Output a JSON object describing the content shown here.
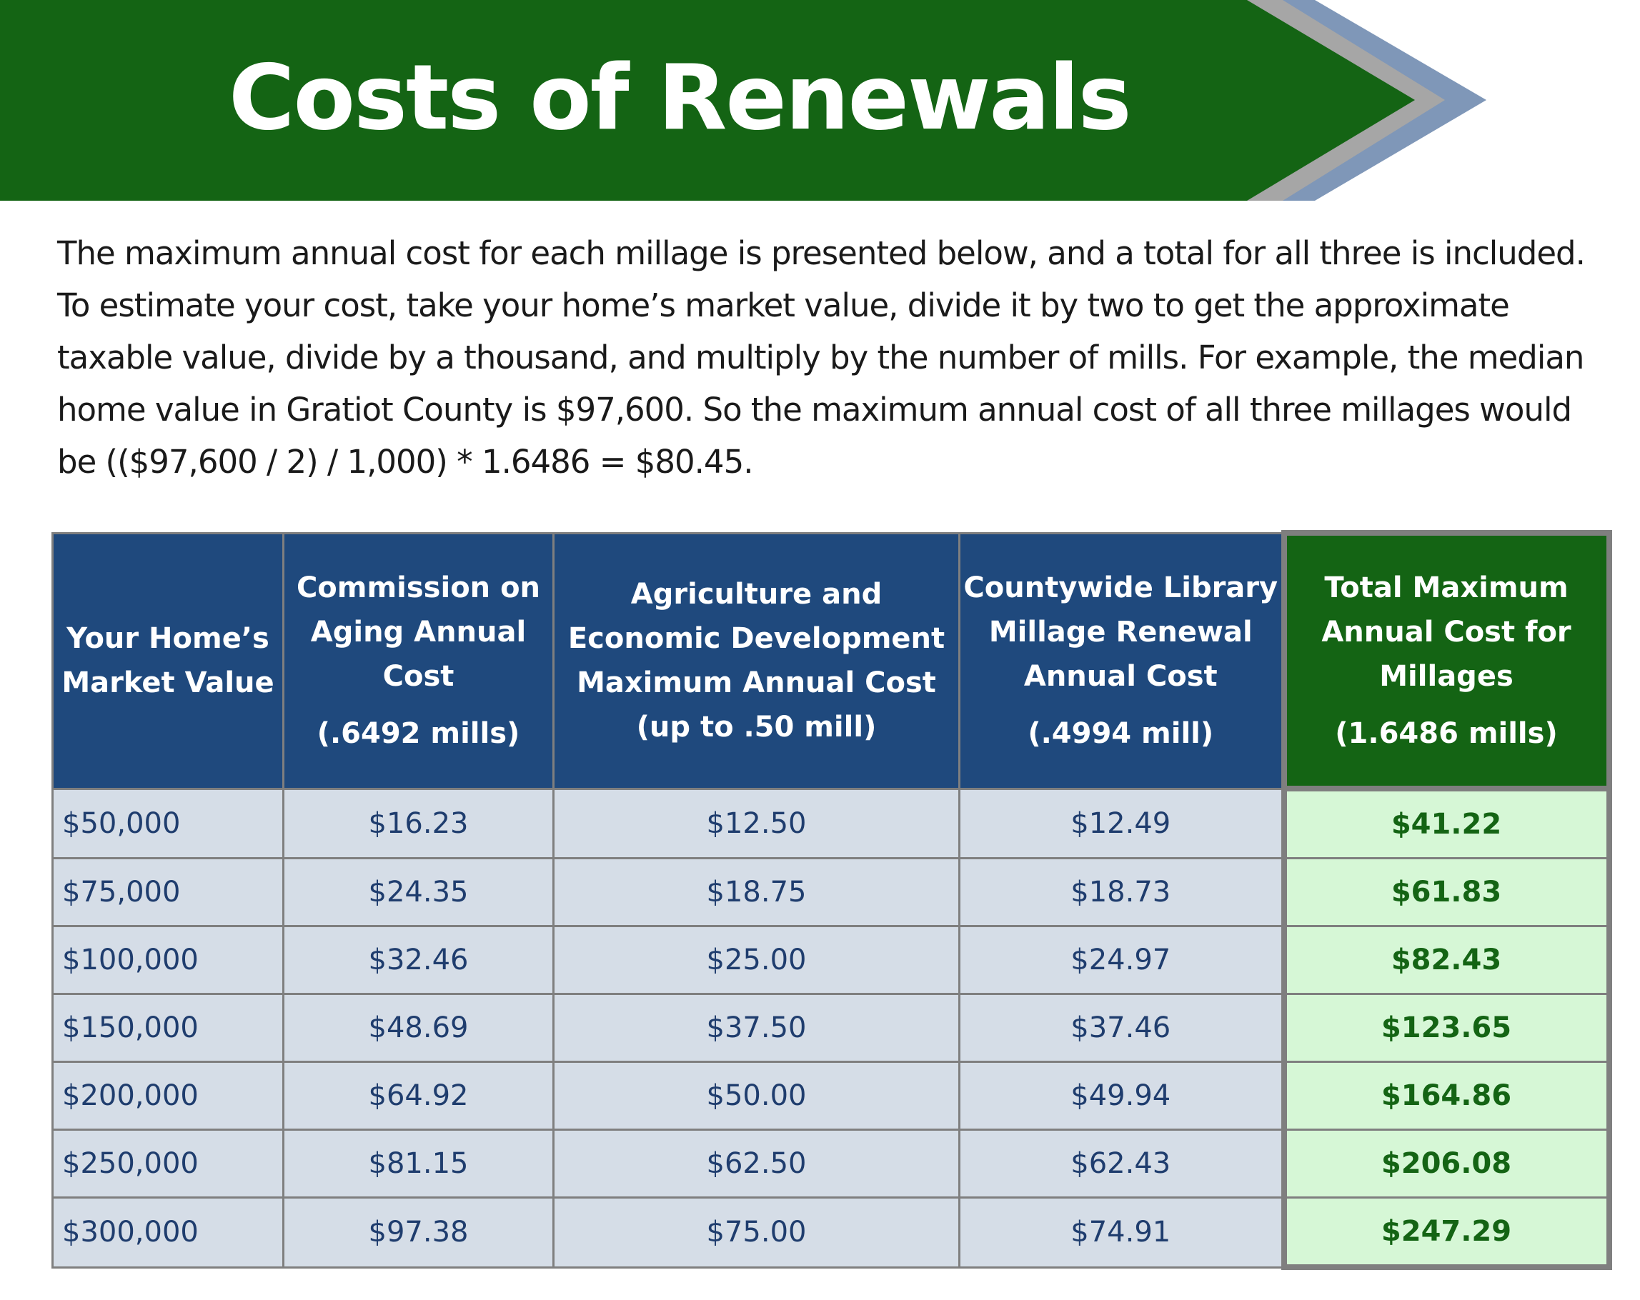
{
  "banner": {
    "title": "Costs of Renewals"
  },
  "intro": {
    "lines": [
      "The maximum annual cost for each millage is presented below, and a total for all three is included.",
      "To estimate your cost, take your home’s market value, divide it by two to get the approximate",
      "taxable value, divide by a thousand, and multiply by the number of mills.  For example, the median",
      "home value in Gratiot County is $97,600.  So the maximum annual cost of all three millages would",
      "be (($97,600 / 2) / 1,000) * 1.6486 =  $80.45."
    ]
  },
  "table": {
    "headers": [
      {
        "line1": "Your Home’s",
        "line2": "Market Value",
        "line3": "",
        "sub": ""
      },
      {
        "line1": "Commission on",
        "line2": "Aging Annual",
        "line3": "Cost",
        "sub": "(.6492 mills)"
      },
      {
        "line1": "Agriculture and",
        "line2": "Economic Development",
        "line3": "Maximum Annual Cost",
        "sub": "(up to .50 mill)"
      },
      {
        "line1": "Countywide Library",
        "line2": "Millage Renewal",
        "line3": "Annual Cost",
        "sub": "(.4994 mill)"
      },
      {
        "line1": "Total Maximum",
        "line2": "Annual Cost for",
        "line3": "Millages",
        "sub": "(1.6486 mills)"
      }
    ],
    "rows": [
      [
        "$50,000",
        "$16.23",
        "$12.50",
        "$12.49",
        "$41.22"
      ],
      [
        "$75,000",
        "$24.35",
        "$18.75",
        "$18.73",
        "$61.83"
      ],
      [
        "$100,000",
        "$32.46",
        "$25.00",
        "$24.97",
        "$82.43"
      ],
      [
        "$150,000",
        "$48.69",
        "$37.50",
        "$37.46",
        "$123.65"
      ],
      [
        "$200,000",
        "$64.92",
        "$50.00",
        "$49.94",
        "$164.86"
      ],
      [
        "$250,000",
        "$81.15",
        "$62.50",
        "$62.43",
        "$206.08"
      ],
      [
        "$300,000",
        "$97.38",
        "$75.00",
        "$74.91",
        "$247.29"
      ]
    ]
  },
  "colors": {
    "banner_green": "#146414",
    "arrow_gray": "#a6a6a6",
    "arrow_blue": "#7f97b8",
    "header_blue": "#1f497d",
    "total_green": "#146414",
    "cell_blue": "#d5dde7",
    "cell_green": "#d6f7d6"
  }
}
